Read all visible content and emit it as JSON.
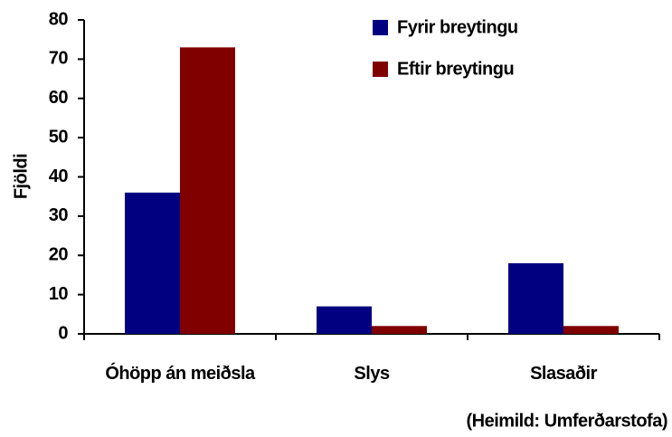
{
  "chart_data": {
    "type": "bar",
    "categories": [
      "Óhöpp án meiðsla",
      "Slys",
      "Slasaðir"
    ],
    "series": [
      {
        "name": "Fyrir breytingu",
        "color": "#000080",
        "values": [
          36,
          7,
          18
        ]
      },
      {
        "name": "Eftir breytingu",
        "color": "#800000",
        "values": [
          73,
          2,
          2
        ]
      }
    ],
    "ylabel": "Fjöldi",
    "annotation": "(Heimild: Umferðarstofa)",
    "ylim": [
      0,
      80
    ],
    "yticks": [
      0,
      10,
      20,
      30,
      40,
      50,
      60,
      70,
      80
    ],
    "grid": false,
    "legend": "upper right"
  }
}
